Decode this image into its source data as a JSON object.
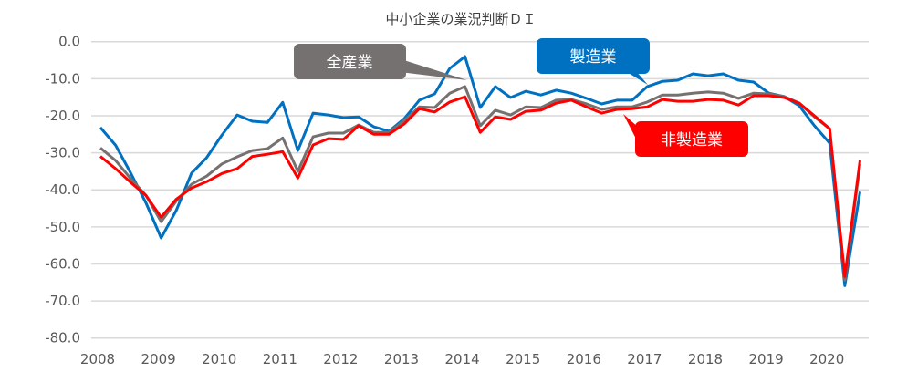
{
  "chart_data": {
    "type": "line",
    "title": "中小企業の業況判断ＤＩ",
    "xlabel": "",
    "ylabel": "",
    "x_start": "2008 Q1",
    "x_frequency": "quarterly",
    "xticks": [
      "2008",
      "2009",
      "2010",
      "2011",
      "2012",
      "2013",
      "2014",
      "2015",
      "2016",
      "2017",
      "2018",
      "2019",
      "2020"
    ],
    "yticks": [
      "0.0",
      "-10.0",
      "-20.0",
      "-30.0",
      "-40.0",
      "-50.0",
      "-60.0",
      "-70.0",
      "-80.0"
    ],
    "ylim": [
      -80,
      0
    ],
    "grid": true,
    "legend": "callouts",
    "series": [
      {
        "name": "製造業",
        "color": "#0070C0",
        "values": [
          -23.2,
          -28,
          -35.5,
          -43.5,
          -53,
          -45.5,
          -35.5,
          -31.3,
          -25.2,
          -19.8,
          -21.5,
          -21.8,
          -16.4,
          -29.4,
          -19.3,
          -19.8,
          -20.5,
          -20.3,
          -23,
          -24.2,
          -20.8,
          -15.8,
          -14.1,
          -7.2,
          -4,
          -17.8,
          -12.1,
          -15.1,
          -13.4,
          -14.4,
          -13.1,
          -13.9,
          -15.3,
          -16.8,
          -15.8,
          -15.8,
          -12.1,
          -10.7,
          -10.4,
          -8.7,
          -9.2,
          -8.7,
          -10.4,
          -10.9,
          -13.9,
          -14.8,
          -17.3,
          -22.7,
          -27.4,
          -65.9,
          -40.5
        ]
      },
      {
        "name": "全産業",
        "color": "#767171",
        "values": [
          -28.7,
          -32.1,
          -37,
          -41.5,
          -48.6,
          -43,
          -38.5,
          -36.3,
          -33,
          -31.1,
          -29.4,
          -28.9,
          -26,
          -35,
          -25.7,
          -24.7,
          -24.7,
          -22.5,
          -24.5,
          -24.5,
          -21.3,
          -17.6,
          -17.8,
          -13.9,
          -12.1,
          -22.7,
          -18.5,
          -19.8,
          -17.6,
          -17.8,
          -15.8,
          -15.6,
          -16.8,
          -18.3,
          -17.6,
          -17.6,
          -16.3,
          -14.4,
          -14.4,
          -13.9,
          -13.6,
          -13.9,
          -15.3,
          -13.9,
          -14.1,
          -14.8,
          -16.6,
          -20.3,
          -23.5,
          -64.4,
          -33
        ]
      },
      {
        "name": "非製造業",
        "color": "#FF0000",
        "values": [
          -31,
          -34.3,
          -38,
          -41.5,
          -47.4,
          -42.5,
          -39.5,
          -37.8,
          -35.6,
          -34.3,
          -31,
          -30.4,
          -29.7,
          -36.8,
          -27.9,
          -26.2,
          -26.4,
          -22.7,
          -25,
          -25,
          -22.2,
          -18.1,
          -19,
          -16.3,
          -14.9,
          -24.5,
          -20.3,
          -21,
          -18.8,
          -18.5,
          -16.6,
          -15.8,
          -17.6,
          -19.3,
          -18.3,
          -18.1,
          -17.6,
          -15.6,
          -16.1,
          -16.1,
          -15.6,
          -15.8,
          -17.1,
          -14.6,
          -14.6,
          -15.1,
          -16.6,
          -20,
          -23.5,
          -63.4,
          -32.1
        ]
      }
    ]
  }
}
